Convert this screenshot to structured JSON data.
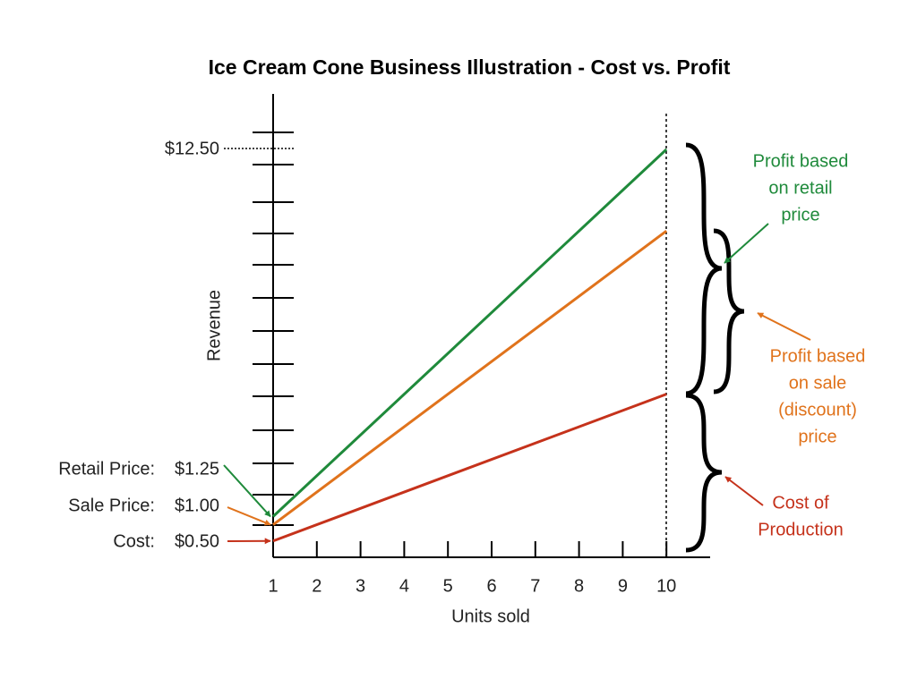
{
  "chart_data": {
    "type": "line",
    "title": "Ice Cream Cone Business Illustration - Cost vs. Profit",
    "x_label": "Units sold",
    "y_label": "Revenue",
    "x": [
      1,
      10
    ],
    "xlim": [
      1,
      11
    ],
    "xticks": [
      1,
      2,
      3,
      4,
      5,
      6,
      7,
      8,
      9,
      10
    ],
    "ylim": [
      0,
      14.2
    ],
    "series": [
      {
        "name": "Retail Price:",
        "color": "#1f8a3b",
        "values": [
          1.25,
          12.5
        ],
        "value_labels": [
          "$1.25",
          "$12.50"
        ]
      },
      {
        "name": "Sale Price:",
        "color": "#e0731c",
        "values": [
          1.0,
          10.0
        ],
        "value_labels": [
          "$1.00",
          null
        ]
      },
      {
        "name": "Cost:",
        "color": "#c5321b",
        "values": [
          0.5,
          5.0
        ],
        "value_labels": [
          "$0.50",
          null
        ]
      }
    ],
    "annotations": [
      {
        "lines": [
          "Profit based",
          "on retail",
          "price"
        ],
        "color": "#1f8a3b"
      },
      {
        "lines": [
          "Profit based",
          "on sale",
          "(discount)",
          "price"
        ],
        "color": "#e0731c"
      },
      {
        "lines": [
          "Cost of",
          "Production"
        ],
        "color": "#c5321b"
      }
    ]
  }
}
